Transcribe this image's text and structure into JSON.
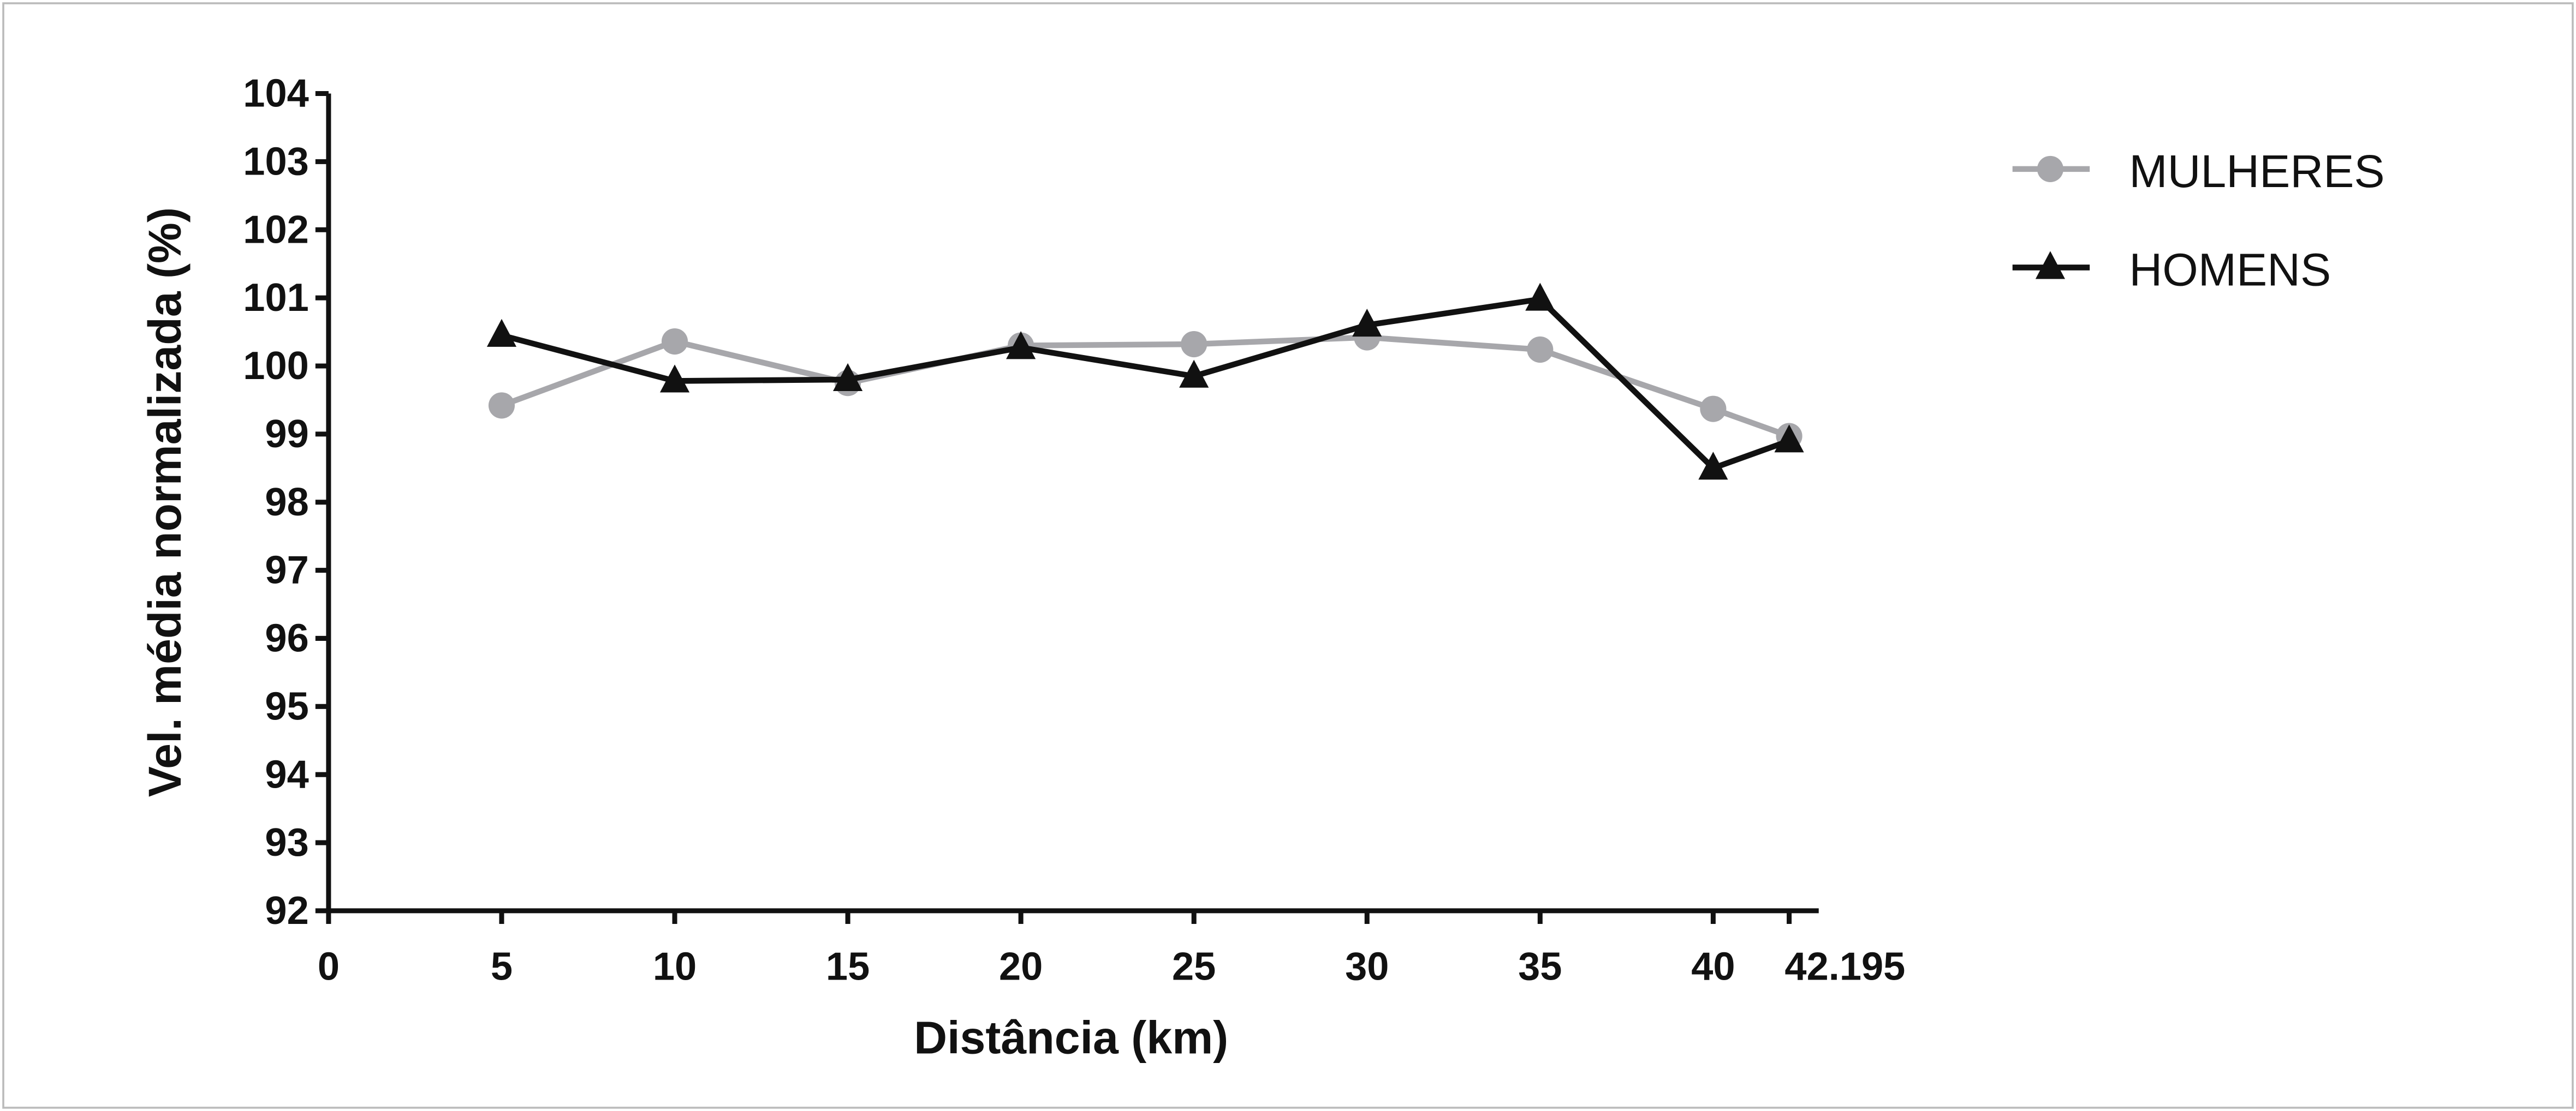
{
  "chart_data": {
    "type": "line",
    "title": "",
    "xlabel": "Distância (km)",
    "ylabel": "Vel. média normalizada (%)",
    "xlim": [
      0,
      42.195
    ],
    "ylim": [
      92,
      104
    ],
    "x_ticks": [
      "0",
      "5",
      "10",
      "15",
      "20",
      "25",
      "30",
      "35",
      "40",
      "42.195"
    ],
    "y_ticks": [
      "92",
      "93",
      "94",
      "95",
      "96",
      "97",
      "98",
      "99",
      "100",
      "101",
      "102",
      "103",
      "104"
    ],
    "x": [
      5,
      10,
      15,
      20,
      25,
      30,
      35,
      40,
      42.195
    ],
    "grid": false,
    "legend_position": "top-right",
    "series": [
      {
        "name": "MULHERES",
        "marker": "circle",
        "color": "#a7a7ab",
        "values": [
          99.42,
          100.36,
          99.75,
          100.3,
          100.32,
          100.42,
          100.24,
          99.37,
          98.97
        ]
      },
      {
        "name": "HOMENS",
        "marker": "triangle",
        "color": "#111111",
        "values": [
          100.45,
          99.78,
          99.8,
          100.27,
          99.85,
          100.6,
          100.98,
          98.5,
          98.9
        ]
      }
    ]
  }
}
